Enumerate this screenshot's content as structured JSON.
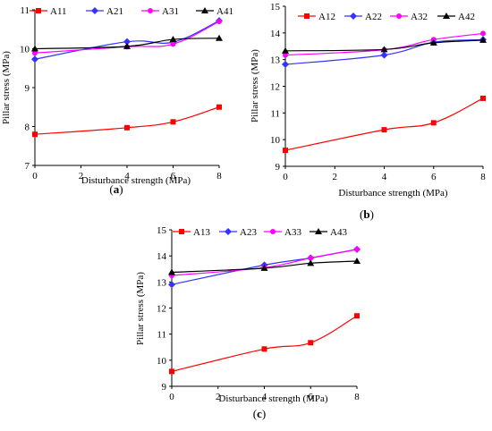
{
  "chart_data": [
    {
      "type": "line",
      "panel_label": "(a)",
      "panel_letter": "a",
      "xlabel": "Disturbance strength (MPa)",
      "ylabel": "Pillar stress (MPa)",
      "xlim": [
        0,
        8
      ],
      "ylim": [
        7,
        11
      ],
      "xticks": [
        0,
        2,
        4,
        6,
        8
      ],
      "yticks": [
        7,
        8,
        9,
        10,
        11
      ],
      "x": [
        0,
        4,
        6,
        8
      ],
      "legend_position": "top",
      "series": [
        {
          "name": "A11",
          "color": "#ff0000",
          "marker": "square",
          "values": [
            7.8,
            7.97,
            8.12,
            8.5
          ]
        },
        {
          "name": "A21",
          "color": "#3333ff",
          "marker": "diamond",
          "values": [
            9.73,
            10.18,
            10.17,
            10.72
          ]
        },
        {
          "name": "A31",
          "color": "#ff00ff",
          "marker": "circle",
          "values": [
            9.89,
            10.05,
            10.12,
            10.7
          ]
        },
        {
          "name": "A41",
          "color": "#000000",
          "marker": "triangle",
          "values": [
            10.0,
            10.06,
            10.24,
            10.27
          ]
        }
      ]
    },
    {
      "type": "line",
      "panel_label": "(b)",
      "panel_letter": "b",
      "xlabel": "Disturbance strength (MPa)",
      "ylabel": "Pillar stress (MPa)",
      "xlim": [
        0,
        8
      ],
      "ylim": [
        9,
        15
      ],
      "xticks": [
        0,
        2,
        4,
        6,
        8
      ],
      "yticks": [
        9,
        10,
        11,
        12,
        13,
        14,
        15
      ],
      "x": [
        0,
        4,
        6,
        8
      ],
      "legend_position": "top",
      "series": [
        {
          "name": "A12",
          "color": "#ff0000",
          "marker": "square",
          "values": [
            9.6,
            10.37,
            10.63,
            11.55
          ]
        },
        {
          "name": "A22",
          "color": "#3333ff",
          "marker": "diamond",
          "values": [
            12.82,
            13.17,
            13.65,
            13.75
          ]
        },
        {
          "name": "A32",
          "color": "#ff00ff",
          "marker": "circle",
          "values": [
            13.17,
            13.37,
            13.75,
            13.98
          ]
        },
        {
          "name": "A42",
          "color": "#000000",
          "marker": "triangle",
          "values": [
            13.33,
            13.38,
            13.63,
            13.73
          ]
        }
      ]
    },
    {
      "type": "line",
      "panel_label": "(c)",
      "panel_letter": "c",
      "xlabel": "Disturbance strength (MPa)",
      "ylabel": "Pillar stress (MPa)",
      "xlim": [
        0,
        8
      ],
      "ylim": [
        9,
        15
      ],
      "xticks": [
        0,
        2,
        4,
        6,
        8
      ],
      "yticks": [
        9,
        10,
        11,
        12,
        13,
        14,
        15
      ],
      "x": [
        0,
        4,
        6,
        8
      ],
      "legend_position": "top",
      "series": [
        {
          "name": "A13",
          "color": "#ff0000",
          "marker": "square",
          "values": [
            9.57,
            10.43,
            10.67,
            11.7
          ]
        },
        {
          "name": "A23",
          "color": "#3333ff",
          "marker": "diamond",
          "values": [
            12.9,
            13.65,
            13.92,
            14.25
          ]
        },
        {
          "name": "A33",
          "color": "#ff00ff",
          "marker": "circle",
          "values": [
            13.25,
            13.55,
            13.92,
            14.25
          ]
        },
        {
          "name": "A43",
          "color": "#000000",
          "marker": "triangle",
          "values": [
            13.37,
            13.53,
            13.72,
            13.8
          ]
        }
      ]
    }
  ]
}
